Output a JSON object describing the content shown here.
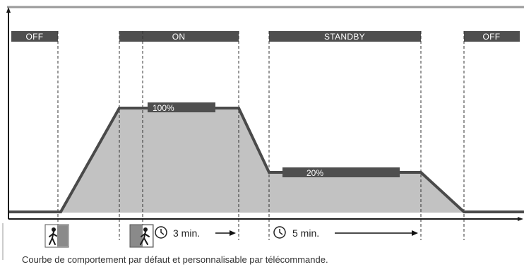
{
  "states": [
    "OFF",
    "ON",
    "STANDBY",
    "OFF"
  ],
  "levels": {
    "on": "100%",
    "standby": "20%"
  },
  "timers": {
    "on_delay": "3 min.",
    "standby_delay": "5 min."
  },
  "caption": "Courbe de comportement par défaut et  personnalisable par télécommande.",
  "icons": [
    "person-entering-icon",
    "person-walking-icon",
    "clock-icon",
    "arrow-right-icon"
  ],
  "colors": {
    "curve": "#4a4a4a",
    "fill": "#c2c2c2",
    "state_bar": "#4f4f4f",
    "border": "#9a9a9a",
    "dashed_line": "#333333"
  }
}
